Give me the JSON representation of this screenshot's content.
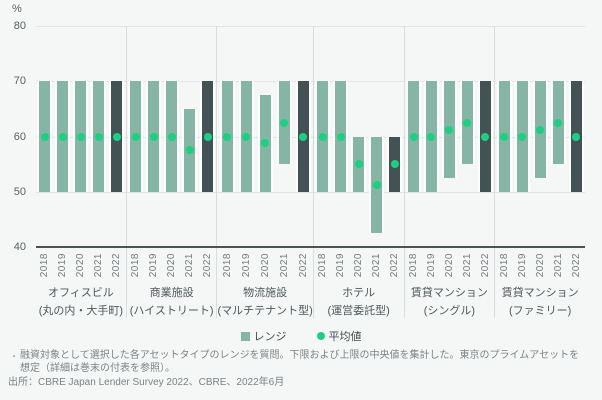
{
  "chart": {
    "unit_label": "%",
    "colors": {
      "range_bar": "#84B5A5",
      "range_bar_highlight": "#435254",
      "average_dot": "#19D280",
      "gridline": "#E1E4E4",
      "axis_line": "#4A5254",
      "separator": "#D9DDDD",
      "background": "#F5F6F6"
    }
  },
  "chart_data": {
    "type": "range-bar",
    "title": "",
    "ylabel": "%",
    "ylim": [
      40,
      80
    ],
    "yticks": [
      80,
      70,
      60,
      50,
      40
    ],
    "grid": true,
    "highlight_year": "2022",
    "legend": {
      "range_label": "レンジ",
      "average_label": "平均値",
      "position": "bottom-center"
    },
    "years": [
      "2018",
      "2019",
      "2020",
      "2021",
      "2022"
    ],
    "groups": [
      {
        "name": "オフィスビル",
        "subname": "(丸の内・大手町)",
        "bars": [
          {
            "year": "2018",
            "low": 50,
            "high": 70,
            "avg": 60
          },
          {
            "year": "2019",
            "low": 50,
            "high": 70,
            "avg": 60
          },
          {
            "year": "2020",
            "low": 50,
            "high": 70,
            "avg": 60
          },
          {
            "year": "2021",
            "low": 50,
            "high": 70,
            "avg": 60
          },
          {
            "year": "2022",
            "low": 50,
            "high": 70,
            "avg": 60
          }
        ]
      },
      {
        "name": "商業施設",
        "subname": "(ハイストリート)",
        "bars": [
          {
            "year": "2018",
            "low": 50,
            "high": 70,
            "avg": 60
          },
          {
            "year": "2019",
            "low": 50,
            "high": 70,
            "avg": 60
          },
          {
            "year": "2020",
            "low": 50,
            "high": 70,
            "avg": 60
          },
          {
            "year": "2021",
            "low": 50,
            "high": 65,
            "avg": 57.5
          },
          {
            "year": "2022",
            "low": 50,
            "high": 70,
            "avg": 60
          }
        ]
      },
      {
        "name": "物流施設",
        "subname": "(マルチテナント型)",
        "bars": [
          {
            "year": "2018",
            "low": 50,
            "high": 70,
            "avg": 60
          },
          {
            "year": "2019",
            "low": 50,
            "high": 70,
            "avg": 60
          },
          {
            "year": "2020",
            "low": 50,
            "high": 67.5,
            "avg": 58.75
          },
          {
            "year": "2021",
            "low": 55,
            "high": 70,
            "avg": 62.5
          },
          {
            "year": "2022",
            "low": 50,
            "high": 70,
            "avg": 60
          }
        ]
      },
      {
        "name": "ホテル",
        "subname": "(運営委託型)",
        "bars": [
          {
            "year": "2018",
            "low": 50,
            "high": 70,
            "avg": 60
          },
          {
            "year": "2019",
            "low": 50,
            "high": 70,
            "avg": 60
          },
          {
            "year": "2020",
            "low": 50,
            "high": 60,
            "avg": 55
          },
          {
            "year": "2021",
            "low": 42.5,
            "high": 60,
            "avg": 51.25
          },
          {
            "year": "2022",
            "low": 50,
            "high": 60,
            "avg": 55
          }
        ]
      },
      {
        "name": "賃貸マンション",
        "subname": "(シングル)",
        "bars": [
          {
            "year": "2018",
            "low": 50,
            "high": 70,
            "avg": 60
          },
          {
            "year": "2019",
            "low": 50,
            "high": 70,
            "avg": 60
          },
          {
            "year": "2020",
            "low": 52.5,
            "high": 70,
            "avg": 61.25
          },
          {
            "year": "2021",
            "low": 55,
            "high": 70,
            "avg": 62.5
          },
          {
            "year": "2022",
            "low": 50,
            "high": 70,
            "avg": 60
          }
        ]
      },
      {
        "name": "賃貸マンション",
        "subname": "(ファミリー)",
        "bars": [
          {
            "year": "2018",
            "low": 50,
            "high": 70,
            "avg": 60
          },
          {
            "year": "2019",
            "low": 50,
            "high": 70,
            "avg": 60
          },
          {
            "year": "2020",
            "low": 52.5,
            "high": 70,
            "avg": 61.25
          },
          {
            "year": "2021",
            "low": 55,
            "high": 70,
            "avg": 62.5
          },
          {
            "year": "2022",
            "low": 50,
            "high": 70,
            "avg": 60
          }
        ]
      }
    ]
  },
  "footnotes": {
    "note_bullet": "・",
    "note_line1": "融資対象として選択した各アセットタイプのレンジを質問。下限および上限の中央値を集計した。東京のプライムアセットを",
    "note_line2": "想定（詳細は巻末の付表を参照）。",
    "source": "出所：CBRE Japan Lender Survey 2022、CBRE、2022年6月"
  }
}
